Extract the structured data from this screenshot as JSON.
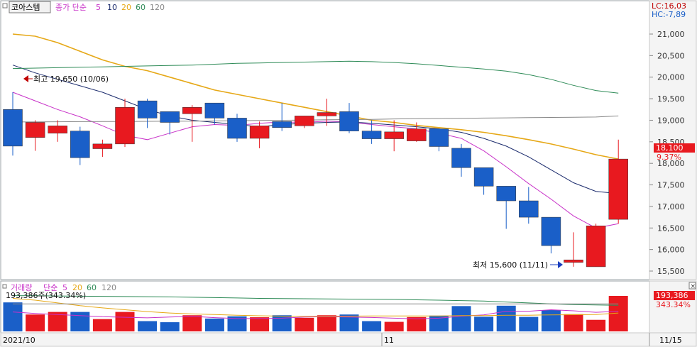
{
  "legend_main": {
    "stock_name": "코아스템",
    "ma_label": "종가 단순",
    "periods": [
      "5",
      "10",
      "20",
      "60",
      "120"
    ],
    "period_colors": [
      "#c832c8",
      "#1a2a6c",
      "#e6a817",
      "#2e8b57",
      "#888888"
    ]
  },
  "corner": {
    "lc": "LC:16,03",
    "hc": "HC:-7,89"
  },
  "annotations": {
    "high": "최고 19,650 (10/06)",
    "low": "최저 15,600 (11/11)"
  },
  "price_axis": {
    "ticks": [
      "21,000",
      "20,500",
      "20,000",
      "19,500",
      "19,000",
      "18,500",
      "18,000",
      "17,500",
      "17,000",
      "16,500",
      "16,000",
      "15,500"
    ],
    "last_price": "18,100",
    "last_change": "9.37%"
  },
  "volume_legend": {
    "label": "거래량",
    "ma_label": "단순",
    "periods": [
      "5",
      "20",
      "60",
      "120"
    ],
    "period_colors": [
      "#c832c8",
      "#e6a817",
      "#2e8b57",
      "#888888"
    ],
    "max_label": "193,386주(343.34%)"
  },
  "volume_axis": {
    "last_value": "193,386",
    "last_change": "343.34%"
  },
  "date_axis": {
    "labels": [
      "2021/10",
      "11"
    ],
    "right_label": "11/15"
  },
  "colors": {
    "up": "#e8191f",
    "down": "#1a5fc8",
    "ma5": "#c832c8",
    "ma10": "#1a2a6c",
    "ma20": "#e6a817",
    "ma60": "#2e8b57",
    "ma120": "#888888"
  },
  "chart_data": {
    "type": "candlestick",
    "y_range": [
      15400,
      21200
    ],
    "volume_range": [
      0,
      200000
    ],
    "series": [
      {
        "name": "price",
        "candles": [
          {
            "o": 19250,
            "h": 19650,
            "l": 18180,
            "c": 18400
          },
          {
            "o": 18600,
            "h": 19000,
            "l": 18290,
            "c": 18950
          },
          {
            "o": 18700,
            "h": 19000,
            "l": 18500,
            "c": 18870
          },
          {
            "o": 18750,
            "h": 18850,
            "l": 17960,
            "c": 18130
          },
          {
            "o": 18340,
            "h": 18550,
            "l": 18150,
            "c": 18450
          },
          {
            "o": 18450,
            "h": 19500,
            "l": 18380,
            "c": 19300
          },
          {
            "o": 19450,
            "h": 19500,
            "l": 18820,
            "c": 19050
          },
          {
            "o": 19200,
            "h": 19200,
            "l": 18670,
            "c": 18950
          },
          {
            "o": 19150,
            "h": 19350,
            "l": 18500,
            "c": 19300
          },
          {
            "o": 19400,
            "h": 19400,
            "l": 18900,
            "c": 19050
          },
          {
            "o": 19050,
            "h": 19150,
            "l": 18500,
            "c": 18580
          },
          {
            "o": 18580,
            "h": 18970,
            "l": 18350,
            "c": 18870
          },
          {
            "o": 18970,
            "h": 19400,
            "l": 18750,
            "c": 18830
          },
          {
            "o": 18870,
            "h": 19100,
            "l": 18820,
            "c": 19100
          },
          {
            "o": 19100,
            "h": 19500,
            "l": 18870,
            "c": 19180
          },
          {
            "o": 19200,
            "h": 19400,
            "l": 18700,
            "c": 18750
          },
          {
            "o": 18750,
            "h": 19000,
            "l": 18450,
            "c": 18570
          },
          {
            "o": 18570,
            "h": 19000,
            "l": 18280,
            "c": 18730
          },
          {
            "o": 18520,
            "h": 18950,
            "l": 18500,
            "c": 18800
          },
          {
            "o": 18800,
            "h": 18800,
            "l": 18280,
            "c": 18390
          },
          {
            "o": 18350,
            "h": 18450,
            "l": 17690,
            "c": 17900
          },
          {
            "o": 17900,
            "h": 17900,
            "l": 17270,
            "c": 17470
          },
          {
            "o": 17470,
            "h": 17470,
            "l": 16480,
            "c": 17130
          },
          {
            "o": 17130,
            "h": 17450,
            "l": 16600,
            "c": 16750
          },
          {
            "o": 16750,
            "h": 16750,
            "l": 15910,
            "c": 16090
          },
          {
            "o": 15700,
            "h": 16400,
            "l": 15600,
            "c": 15760
          },
          {
            "o": 15600,
            "h": 16600,
            "l": 15600,
            "c": 16550
          },
          {
            "o": 16700,
            "h": 18550,
            "l": 16600,
            "c": 18100
          }
        ]
      },
      {
        "name": "5",
        "values": [
          19650,
          19450,
          19250,
          19080,
          18870,
          18650,
          18550,
          18700,
          18850,
          18900,
          18880,
          18930,
          18960,
          18950,
          18980,
          18960,
          18900,
          18850,
          18800,
          18700,
          18580,
          18290,
          17920,
          17530,
          17170,
          16780,
          16500,
          16600
        ]
      },
      {
        "name": "10",
        "values": [
          20280,
          20100,
          19950,
          19800,
          19650,
          19450,
          19250,
          19100,
          19000,
          18950,
          18900,
          18850,
          18900,
          18930,
          18950,
          18960,
          18930,
          18890,
          18850,
          18800,
          18720,
          18580,
          18400,
          18150,
          17850,
          17550,
          17350,
          17300
        ]
      },
      {
        "name": "20",
        "values": [
          21000,
          20950,
          20800,
          20600,
          20400,
          20250,
          20150,
          20000,
          19850,
          19700,
          19600,
          19500,
          19400,
          19300,
          19200,
          19100,
          19000,
          18950,
          18880,
          18830,
          18780,
          18720,
          18640,
          18550,
          18450,
          18330,
          18200,
          18100
        ]
      },
      {
        "name": "60",
        "values": [
          20200,
          20210,
          20220,
          20230,
          20240,
          20250,
          20260,
          20270,
          20280,
          20300,
          20320,
          20330,
          20340,
          20350,
          20360,
          20370,
          20360,
          20340,
          20310,
          20270,
          20230,
          20190,
          20140,
          20060,
          19950,
          19810,
          19690,
          19630
        ]
      },
      {
        "name": "120",
        "values": [
          18960,
          18962,
          18965,
          18968,
          18970,
          18972,
          18975,
          18978,
          18980,
          18985,
          18990,
          18995,
          19000,
          19005,
          19010,
          19015,
          19020,
          19030,
          19035,
          19040,
          19045,
          19050,
          19055,
          19060,
          19065,
          19070,
          19075,
          19100
        ]
      }
    ],
    "volume": {
      "values": [
        158000,
        92000,
        106000,
        106000,
        67000,
        106000,
        56000,
        50000,
        88000,
        70000,
        82000,
        77000,
        88000,
        74000,
        88000,
        92000,
        56000,
        52000,
        78000,
        86000,
        138000,
        80000,
        140000,
        79000,
        116000,
        94000,
        63000,
        193386
      ],
      "ma5": [
        106000,
        98000,
        92000,
        86000,
        80000,
        77000,
        74000,
        78000,
        82000,
        75000,
        70000,
        70000,
        72000,
        78000,
        80000,
        78000,
        76000,
        72000,
        69000,
        72000,
        83000,
        90000,
        110000,
        110000,
        118000,
        112000,
        104000,
        110000
      ],
      "ma20": [
        180000,
        170000,
        155000,
        140000,
        128000,
        118000,
        108000,
        100000,
        95000,
        92000,
        88000,
        85000,
        83000,
        82000,
        82000,
        83000,
        84000,
        84000,
        84000,
        84000,
        86000,
        86000,
        88000,
        88000,
        90000,
        91000,
        92000,
        100000
      ],
      "ma60": [
        195000,
        194000,
        193000,
        192000,
        191000,
        190000,
        189000,
        188000,
        186000,
        184000,
        182000,
        180000,
        179000,
        178000,
        177000,
        176000,
        175000,
        174000,
        172000,
        170000,
        168000,
        165000,
        160000,
        155000,
        150000,
        146000,
        144000,
        142000
      ],
      "ma120": [
        150000,
        150000,
        150000,
        150000,
        150000,
        150000,
        150000,
        150000,
        150000,
        150000,
        150000,
        150000,
        150000,
        150000,
        150000,
        150000,
        150000,
        150000,
        150000,
        150000,
        150000,
        150000,
        150000,
        150000,
        150000,
        150000,
        150000,
        150000
      ]
    }
  }
}
